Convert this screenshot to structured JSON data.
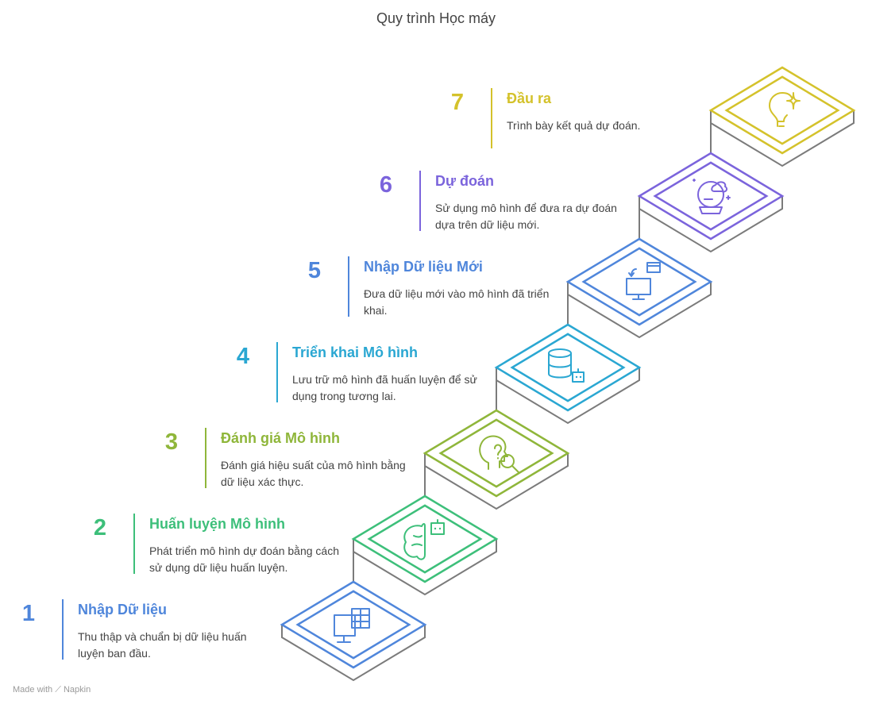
{
  "title": "Quy trình Học máy",
  "footer": {
    "made_with": "Made with",
    "brand": "Napkin"
  },
  "colors": {
    "stair_outline": "#7b7b7b",
    "text": "#444444"
  },
  "steps": [
    {
      "number": "1",
      "title": "Nhập Dữ liệu",
      "description": "Thu thập và chuẩn bị dữ liệu huấn luyện ban đầu.",
      "color": "#4f86db",
      "icon": "computer-table-icon"
    },
    {
      "number": "2",
      "title": "Huấn luyện Mô hình",
      "description": "Phát triển mô hình dự đoán bằng cách sử dụng dữ liệu huấn luyện.",
      "color": "#3dbf7a",
      "icon": "brain-robot-icon"
    },
    {
      "number": "3",
      "title": "Đánh giá Mô hình",
      "description": "Đánh giá hiệu suất của mô hình bằng dữ liệu xác thực.",
      "color": "#8fb63a",
      "icon": "head-question-icon"
    },
    {
      "number": "4",
      "title": "Triển khai Mô hình",
      "description": "Lưu trữ mô hình đã huấn luyện để sử dụng trong tương lai.",
      "color": "#2aa7d2",
      "icon": "database-robot-icon"
    },
    {
      "number": "5",
      "title": "Nhập Dữ liệu Mới",
      "description": "Đưa dữ liệu mới vào mô hình đã triển khai.",
      "color": "#4f86db",
      "icon": "monitor-input-icon"
    },
    {
      "number": "6",
      "title": "Dự đoán",
      "description": "Sử dụng mô hình để đưa ra dự đoán dựa trên dữ liệu mới.",
      "color": "#7b64dc",
      "icon": "crystal-ball-icon"
    },
    {
      "number": "7",
      "title": "Đầu ra",
      "description": "Trình bày kết quả dự đoán.",
      "color": "#d4c22b",
      "icon": "lightbulb-icon"
    }
  ]
}
